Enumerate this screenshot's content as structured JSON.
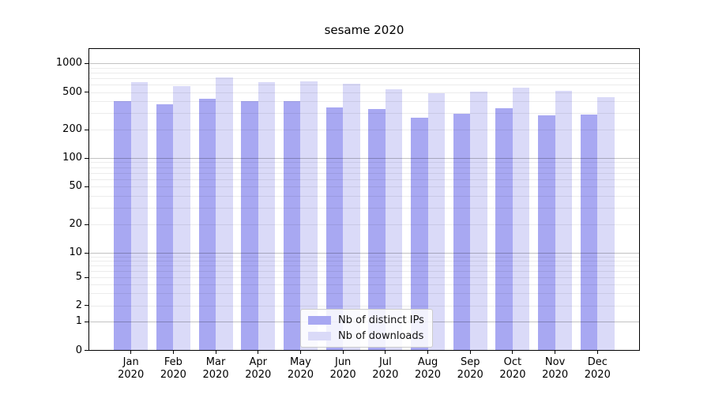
{
  "title": "sesame 2020",
  "legend": {
    "items": [
      {
        "id": "distinct-ips",
        "label": "Nb of distinct IPs",
        "color": "#a8a8f2"
      },
      {
        "id": "downloads",
        "label": "Nb of downloads",
        "color": "#dadaf8"
      }
    ]
  },
  "y_axis": {
    "tick_labels": [
      "1000",
      "500",
      "200",
      "100",
      "50",
      "20",
      "10",
      "5",
      "2",
      "1",
      "0"
    ],
    "tick_values": [
      1000,
      500,
      200,
      100,
      50,
      20,
      10,
      5,
      2,
      1,
      0
    ]
  },
  "x_axis": {
    "tick_line1": [
      "Jan",
      "Feb",
      "Mar",
      "Apr",
      "May",
      "Jun",
      "Jul",
      "Aug",
      "Sep",
      "Oct",
      "Nov",
      "Dec"
    ],
    "tick_line2": "2020"
  },
  "chart_data": {
    "type": "bar",
    "title": "sesame 2020",
    "categories": [
      "Jan 2020",
      "Feb 2020",
      "Mar 2020",
      "Apr 2020",
      "May 2020",
      "Jun 2020",
      "Jul 2020",
      "Aug 2020",
      "Sep 2020",
      "Oct 2020",
      "Nov 2020",
      "Dec 2020"
    ],
    "series": [
      {
        "name": "Nb of distinct IPs",
        "color": "#a8a8f2",
        "values": [
          400,
          370,
          430,
          405,
          403,
          345,
          330,
          265,
          293,
          337,
          282,
          287
        ]
      },
      {
        "name": "Nb of downloads",
        "color": "#dadaf8",
        "values": [
          630,
          580,
          710,
          630,
          645,
          610,
          540,
          490,
          510,
          560,
          520,
          440
        ]
      }
    ],
    "xlabel": "",
    "ylabel": "",
    "yscale": "symlog",
    "ylim": [
      0,
      1400
    ],
    "y_ticks": [
      0,
      1,
      2,
      5,
      10,
      20,
      50,
      100,
      200,
      500,
      1000
    ],
    "grid": "horizontal major and minor gridlines, drawn over bars",
    "legend_position": "lower center"
  }
}
